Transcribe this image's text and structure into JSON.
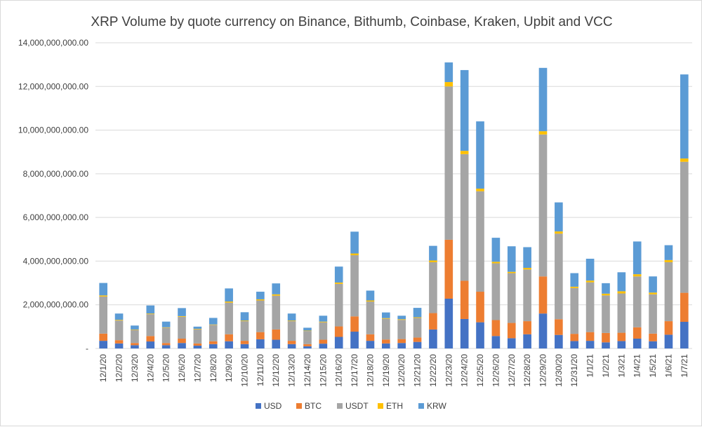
{
  "chart_data": {
    "type": "bar",
    "stacked": true,
    "title": "XRP Volume by quote currency on Binance, Bithumb, Coinbase, Kraken, Upbit and VCC",
    "xlabel": "",
    "ylabel": "",
    "ylim": [
      0,
      14000000000
    ],
    "yticks": [
      0,
      2000000000,
      4000000000,
      6000000000,
      8000000000,
      10000000000,
      12000000000,
      14000000000
    ],
    "ytick_labels": [
      "-",
      "2,000,000,000.00",
      "4,000,000,000.00",
      "6,000,000,000.00",
      "8,000,000,000.00",
      "10,000,000,000.00",
      "12,000,000,000.00",
      "14,000,000,000.00"
    ],
    "grid": true,
    "legend_position": "bottom",
    "categories": [
      "12/1/20",
      "12/2/20",
      "12/3/20",
      "12/4/20",
      "12/5/20",
      "12/6/20",
      "12/7/20",
      "12/8/20",
      "12/9/20",
      "12/10/20",
      "12/11/20",
      "12/12/20",
      "12/13/20",
      "12/14/20",
      "12/15/20",
      "12/16/20",
      "12/17/20",
      "12/18/20",
      "12/19/20",
      "12/20/20",
      "12/21/20",
      "12/22/20",
      "12/23/20",
      "12/24/20",
      "12/25/20",
      "12/26/20",
      "12/27/20",
      "12/28/20",
      "12/29/20",
      "12/30/20",
      "12/31/20",
      "1/1/21",
      "1/2/21",
      "1/3/21",
      "1/4/21",
      "1/5/21",
      "1/6/21",
      "1/7/21"
    ],
    "series": [
      {
        "name": "USD",
        "color": "#4472C4",
        "values": [
          350000000,
          230000000,
          150000000,
          320000000,
          150000000,
          250000000,
          130000000,
          200000000,
          330000000,
          200000000,
          420000000,
          400000000,
          200000000,
          100000000,
          220000000,
          530000000,
          770000000,
          350000000,
          230000000,
          250000000,
          300000000,
          870000000,
          2280000000,
          1350000000,
          1200000000,
          570000000,
          470000000,
          650000000,
          1600000000,
          620000000,
          340000000,
          350000000,
          280000000,
          340000000,
          450000000,
          330000000,
          630000000,
          1220000000
        ]
      },
      {
        "name": "BTC",
        "color": "#ED7D31",
        "values": [
          330000000,
          150000000,
          100000000,
          250000000,
          100000000,
          200000000,
          100000000,
          130000000,
          320000000,
          150000000,
          330000000,
          470000000,
          150000000,
          100000000,
          180000000,
          480000000,
          700000000,
          300000000,
          180000000,
          180000000,
          200000000,
          750000000,
          2700000000,
          1750000000,
          1400000000,
          730000000,
          700000000,
          600000000,
          1700000000,
          720000000,
          330000000,
          400000000,
          430000000,
          380000000,
          520000000,
          350000000,
          620000000,
          1330000000
        ]
      },
      {
        "name": "USDT",
        "color": "#A5A5A5",
        "values": [
          1700000000,
          900000000,
          600000000,
          1000000000,
          700000000,
          1000000000,
          650000000,
          750000000,
          1450000000,
          900000000,
          1450000000,
          1550000000,
          900000000,
          600000000,
          800000000,
          1950000000,
          2800000000,
          1500000000,
          950000000,
          880000000,
          900000000,
          2330000000,
          7020000000,
          5800000000,
          4600000000,
          2600000000,
          2280000000,
          2370000000,
          6500000000,
          3920000000,
          2100000000,
          2280000000,
          1720000000,
          1800000000,
          2330000000,
          1800000000,
          2700000000,
          6000000000
        ]
      },
      {
        "name": "ETH",
        "color": "#FFC000",
        "values": [
          50000000,
          30000000,
          20000000,
          30000000,
          20000000,
          30000000,
          20000000,
          20000000,
          50000000,
          30000000,
          50000000,
          60000000,
          30000000,
          20000000,
          30000000,
          60000000,
          80000000,
          50000000,
          30000000,
          30000000,
          30000000,
          80000000,
          200000000,
          150000000,
          120000000,
          70000000,
          60000000,
          70000000,
          150000000,
          100000000,
          60000000,
          80000000,
          80000000,
          100000000,
          100000000,
          80000000,
          100000000,
          150000000
        ]
      },
      {
        "name": "KRW",
        "color": "#5B9BD5",
        "values": [
          570000000,
          290000000,
          180000000,
          370000000,
          260000000,
          370000000,
          100000000,
          300000000,
          600000000,
          380000000,
          350000000,
          500000000,
          320000000,
          130000000,
          270000000,
          730000000,
          1000000000,
          450000000,
          260000000,
          160000000,
          430000000,
          670000000,
          900000000,
          3700000000,
          3080000000,
          1100000000,
          1170000000,
          950000000,
          2900000000,
          1330000000,
          620000000,
          1000000000,
          480000000,
          870000000,
          1500000000,
          740000000,
          680000000,
          3850000000
        ]
      }
    ]
  }
}
